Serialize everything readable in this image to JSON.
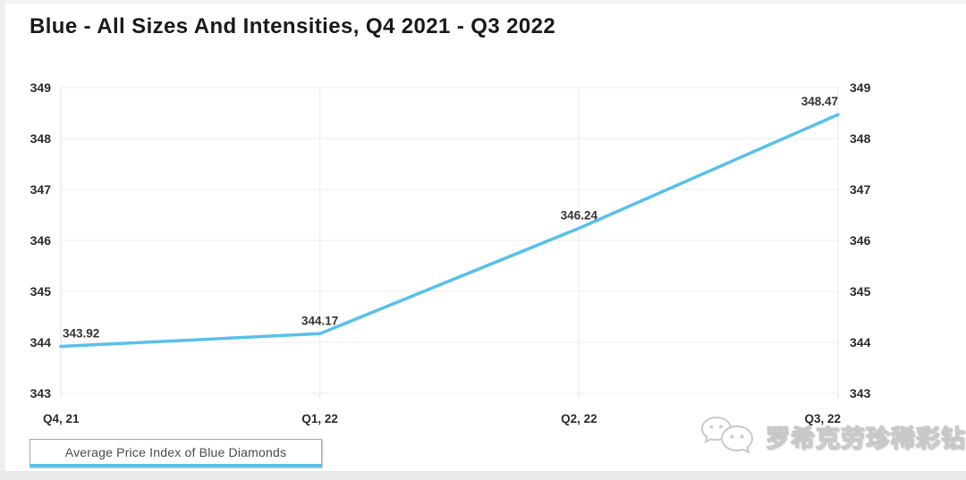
{
  "title": "Blue - All Sizes And Intensities, Q4 2021 - Q3 2022",
  "legend": {
    "label": "Average Price Index of Blue Diamonds"
  },
  "watermark": {
    "text": "罗希克劳珍稀彩钻",
    "icon": "wechat-icon"
  },
  "colors": {
    "line": "#58c0ea",
    "gridline": "#ececec",
    "axis_line": "#e0e0e0",
    "tick_text": "#2b2b2b",
    "data_label": "#333333",
    "legend_accent": "#5bc0ea"
  },
  "chart_data": {
    "type": "line",
    "title": "Blue - All Sizes And Intensities, Q4 2021 - Q3 2022",
    "categories": [
      "Q4, 21",
      "Q1, 22",
      "Q2, 22",
      "Q3, 22"
    ],
    "series": [
      {
        "name": "Average Price Index of Blue Diamonds",
        "values": [
          343.92,
          344.17,
          346.24,
          348.47
        ]
      }
    ],
    "data_labels": [
      "343.92",
      "344.17",
      "346.24",
      "348.47"
    ],
    "xlabel": "",
    "ylabel": "",
    "ylim": [
      343,
      349
    ],
    "yticks": [
      343,
      344,
      345,
      346,
      347,
      348,
      349
    ],
    "grid": true,
    "y_axis_sides": [
      "left",
      "right"
    ],
    "legend_position": "bottom-left"
  }
}
